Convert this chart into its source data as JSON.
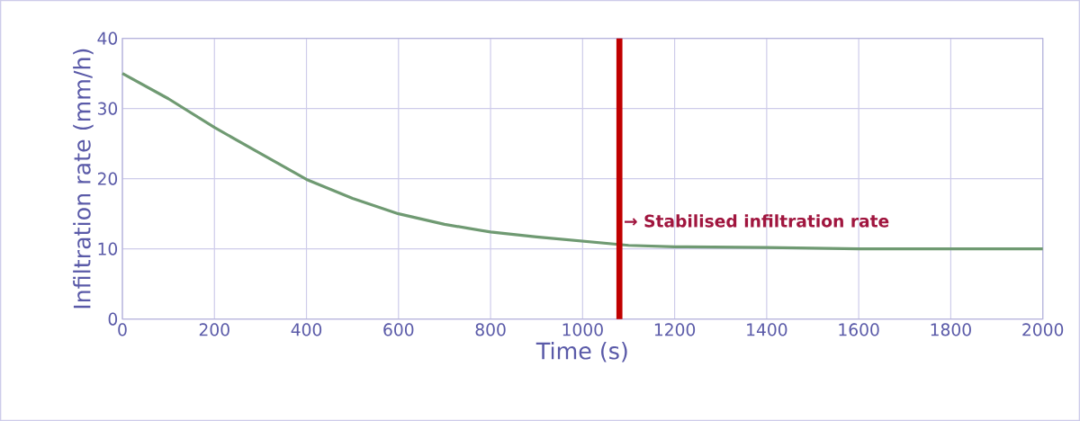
{
  "chart_data": {
    "type": "line",
    "xlabel": "Time (s)",
    "ylabel": "Infiltration rate (mm/h)",
    "x": [
      0,
      100,
      200,
      300,
      400,
      500,
      600,
      700,
      800,
      900,
      1000,
      1100,
      1200,
      1400,
      1600,
      1800,
      2000
    ],
    "series": [
      {
        "color": "#6f9a72",
        "values": [
          35.0,
          31.4,
          27.3,
          23.6,
          19.9,
          17.2,
          15.0,
          13.5,
          12.4,
          11.7,
          11.1,
          10.5,
          10.3,
          10.2,
          10.0,
          10.0,
          10.0
        ]
      }
    ],
    "xlim": [
      0,
      2000
    ],
    "ylim": [
      0,
      40
    ],
    "xticks": [
      0,
      200,
      400,
      600,
      800,
      1000,
      1200,
      1400,
      1600,
      1800,
      2000
    ],
    "yticks": [
      0,
      10,
      20,
      30,
      40
    ],
    "grid": true,
    "marker": "none",
    "line_style": "solid",
    "ref_lines": [
      {
        "axis": "x",
        "value": 1080,
        "label": "→ Stabilised infiltration rate",
        "color": "#c00000"
      }
    ]
  }
}
